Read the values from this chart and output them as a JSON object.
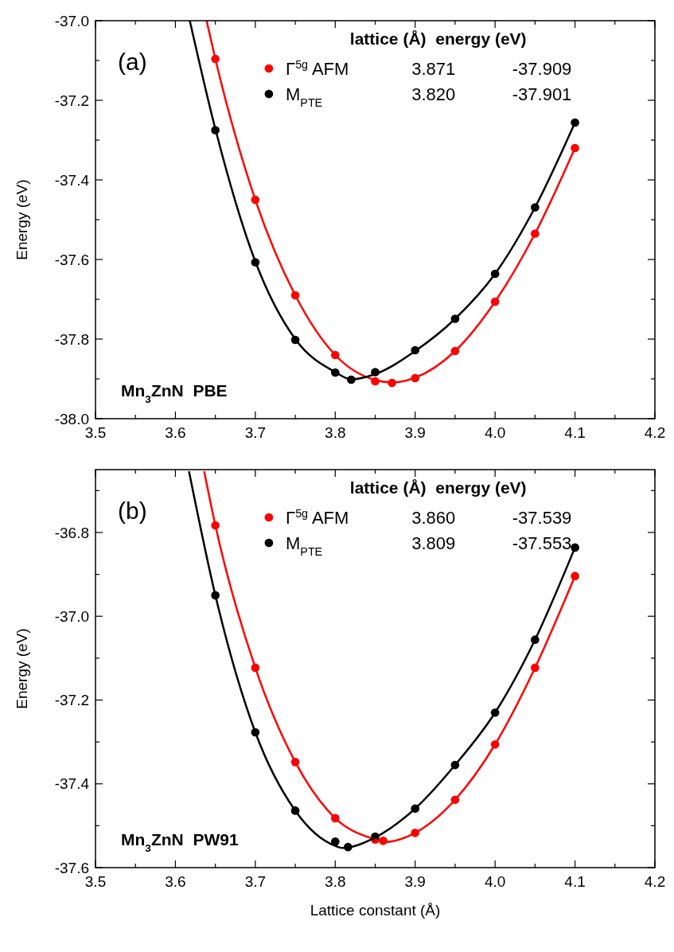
{
  "chart_data": [
    {
      "type": "scatter",
      "ylabel": "Energy (eV)",
      "legend_title": "lattice (Å)  energy (eV)",
      "legend": "top",
      "marker": "circle",
      "xlim": [
        3.5,
        4.2
      ],
      "ylim": [
        -38.0,
        -37.0
      ],
      "xticks": [
        3.5,
        {
          "value": 3.55,
          "label": null
        },
        3.6,
        {
          "value": 3.65,
          "label": null
        },
        3.7,
        {
          "value": 3.75,
          "label": null
        },
        3.8,
        {
          "value": 3.85,
          "label": null
        },
        3.9,
        {
          "value": 3.95,
          "label": null
        },
        {
          "value": 4.0,
          "label": "4.0"
        },
        {
          "value": 4.05,
          "label": null
        },
        4.1,
        {
          "value": 4.15,
          "label": null
        },
        4.2
      ],
      "yticks": [
        {
          "value": -38.0,
          "label": "-38.0"
        },
        {
          "value": -37.9,
          "label": null
        },
        -37.8,
        {
          "value": -37.7,
          "label": null
        },
        -37.6,
        {
          "value": -37.5,
          "label": null
        },
        -37.4,
        {
          "value": -37.3,
          "label": null
        },
        -37.2,
        {
          "value": -37.1,
          "label": null
        },
        {
          "value": -37.0,
          "label": "-37.0"
        }
      ],
      "annotations": [
        "3.871",
        "-37.909",
        "3.820",
        "-37.901",
        "(a)",
        "Mn$_{3}$ZnN  PBE"
      ],
      "series": [
        {
          "name": "Γ$^{5g}$ AFM",
          "color": "#ff0000",
          "x": [
            3.65,
            3.7,
            3.75,
            3.8,
            3.85,
            3.871,
            3.9,
            3.95,
            4.0,
            4.05,
            4.1
          ],
          "values": [
            -37.096,
            -37.45,
            -37.69,
            -37.84,
            -37.906,
            -37.91,
            -37.898,
            -37.83,
            -37.706,
            -37.535,
            -37.32
          ]
        },
        {
          "name": "M$_{PTE}$",
          "color": "#000000",
          "x": [
            3.65,
            3.7,
            3.75,
            3.8,
            3.82,
            3.85,
            3.9,
            3.95,
            4.0,
            4.05,
            4.1
          ],
          "values": [
            -37.275,
            -37.607,
            -37.802,
            -37.884,
            -37.902,
            -37.883,
            -37.828,
            -37.749,
            -37.636,
            -37.469,
            -37.256
          ]
        },
        {
          "type": "line",
          "marker": "none",
          "color": "#ff0000",
          "x": [
            3.639,
            3.65,
            3.7,
            3.75,
            3.8,
            3.85,
            3.871,
            3.9,
            3.95,
            4.0,
            4.05,
            4.1
          ],
          "values": [
            -37.0,
            -37.096,
            -37.45,
            -37.69,
            -37.84,
            -37.903,
            -37.909,
            -37.897,
            -37.83,
            -37.706,
            -37.535,
            -37.32
          ]
        },
        {
          "type": "line",
          "marker": "none",
          "color": "#000000",
          "x": [
            3.618,
            3.65,
            3.7,
            3.75,
            3.8,
            3.82,
            3.85,
            3.9,
            3.95,
            4.0,
            4.05,
            4.1
          ],
          "values": [
            -37.0,
            -37.272,
            -37.605,
            -37.8,
            -37.883,
            -37.901,
            -37.888,
            -37.83,
            -37.749,
            -37.636,
            -37.469,
            -37.256
          ]
        }
      ]
    },
    {
      "type": "scatter",
      "xlabel": "Lattice constant (Å)",
      "ylabel": "Energy (eV)",
      "legend_title": "lattice (Å)  energy (eV)",
      "legend": "top",
      "marker": "circle",
      "xlim": [
        3.5,
        4.2
      ],
      "ylim": [
        -37.6,
        -36.65
      ],
      "xticks": [
        3.5,
        {
          "value": 3.55,
          "label": null
        },
        3.6,
        {
          "value": 3.65,
          "label": null
        },
        3.7,
        {
          "value": 3.75,
          "label": null
        },
        3.8,
        {
          "value": 3.85,
          "label": null
        },
        3.9,
        {
          "value": 3.95,
          "label": null
        },
        {
          "value": 4.0,
          "label": "4.0"
        },
        {
          "value": 4.05,
          "label": null
        },
        4.1,
        {
          "value": 4.15,
          "label": null
        },
        4.2
      ],
      "yticks": [
        -37.6,
        {
          "value": -37.5,
          "label": null
        },
        -37.4,
        {
          "value": -37.3,
          "label": null
        },
        -37.2,
        {
          "value": -37.1,
          "label": null
        },
        {
          "value": -37.0,
          "label": "-37.0"
        },
        {
          "value": -36.9,
          "label": null
        },
        -36.8,
        {
          "value": -36.7,
          "label": null
        }
      ],
      "annotations": [
        "3.860",
        "-37.539",
        "3.809",
        "-37.553",
        "(b)",
        "Mn$_{3}$ZnN  PW91"
      ],
      "series": [
        {
          "name": "Γ$^{5g}$ AFM",
          "color": "#ff0000",
          "x": [
            3.65,
            3.7,
            3.75,
            3.8,
            3.85,
            3.86,
            3.9,
            3.95,
            4.0,
            4.05,
            4.1
          ],
          "values": [
            -36.783,
            -37.123,
            -37.348,
            -37.482,
            -37.533,
            -37.536,
            -37.517,
            -37.438,
            -37.306,
            -37.123,
            -36.904
          ]
        },
        {
          "name": "M$_{PTE}$",
          "color": "#000000",
          "x": [
            3.65,
            3.7,
            3.75,
            3.8,
            3.816,
            3.85,
            3.9,
            3.95,
            4.0,
            4.05,
            4.1
          ],
          "values": [
            -36.95,
            -37.277,
            -37.464,
            -37.538,
            -37.551,
            -37.526,
            -37.459,
            -37.355,
            -37.23,
            -37.056,
            -36.836
          ]
        },
        {
          "type": "line",
          "marker": "none",
          "color": "#ff0000",
          "x": [
            3.636,
            3.65,
            3.7,
            3.75,
            3.8,
            3.85,
            3.86,
            3.9,
            3.95,
            4.0,
            4.05,
            4.1
          ],
          "values": [
            -36.654,
            -36.783,
            -37.123,
            -37.348,
            -37.482,
            -37.533,
            -37.539,
            -37.517,
            -37.438,
            -37.306,
            -37.123,
            -36.904
          ]
        },
        {
          "type": "line",
          "marker": "none",
          "color": "#000000",
          "x": [
            3.617,
            3.65,
            3.7,
            3.75,
            3.8,
            3.809,
            3.85,
            3.9,
            3.95,
            4.0,
            4.05,
            4.1
          ],
          "values": [
            -36.654,
            -36.95,
            -37.277,
            -37.464,
            -37.548,
            -37.553,
            -37.528,
            -37.459,
            -37.355,
            -37.23,
            -37.056,
            -36.836
          ]
        }
      ]
    }
  ]
}
